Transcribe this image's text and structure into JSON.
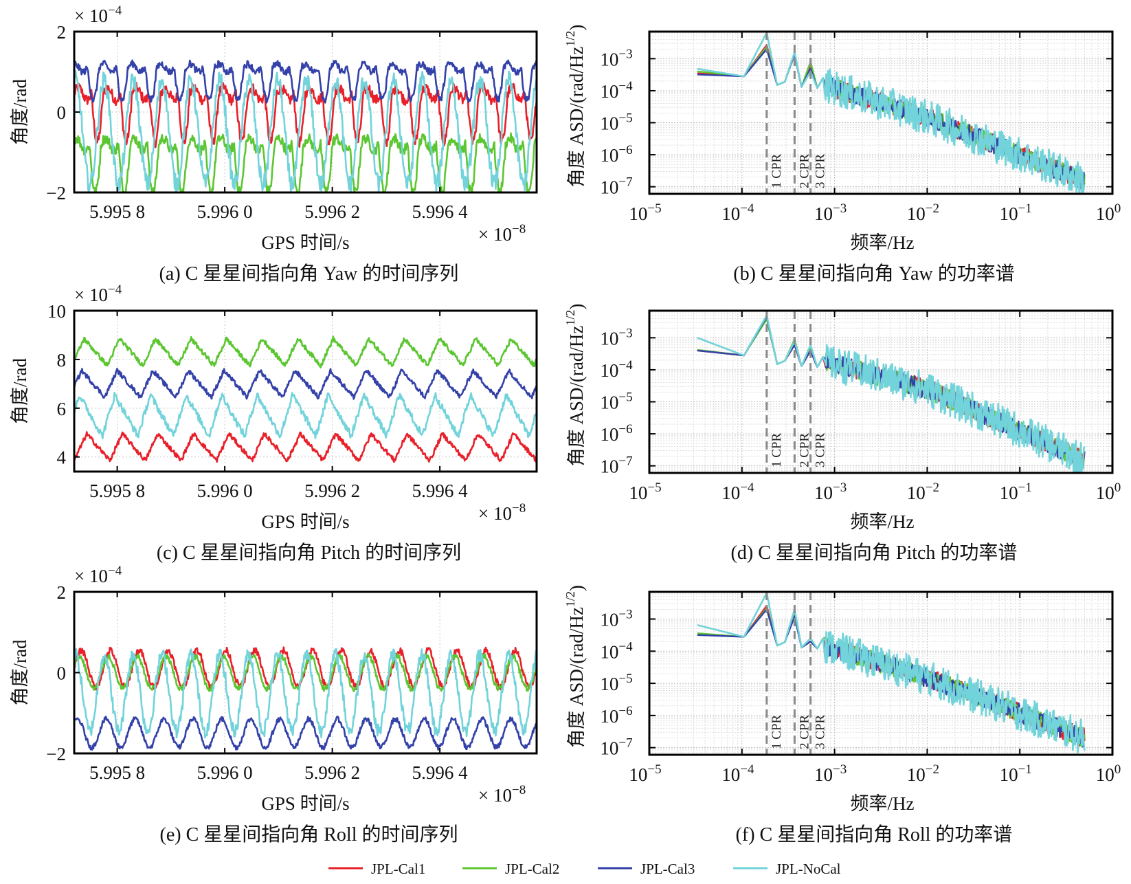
{
  "legend": [
    {
      "name": "JPL-Cal1",
      "color": "#e8202a"
    },
    {
      "name": "JPL-Cal2",
      "color": "#5cc631"
    },
    {
      "name": "JPL-Cal3",
      "color": "#3341a8"
    },
    {
      "name": "JPL-NoCal",
      "color": "#72d3da"
    }
  ],
  "chart_data": [
    {
      "id": "a",
      "type": "line",
      "caption": "(a) C 星星间指向角 Yaw 的时间序列",
      "xlabel": "GPS 时间/s",
      "ylabel": "角度/rad",
      "x_multiplier": "× 10⁻⁸",
      "x_multiplier_base": "× 10",
      "x_multiplier_exp": "−8",
      "y_multiplier_base": "× 10",
      "y_multiplier_exp": "−4",
      "xlim": [
        5.99572,
        5.99658
      ],
      "ylim": [
        -2,
        2
      ],
      "xticks": [
        5.9958,
        5.996,
        5.9962,
        5.9964
      ],
      "xtick_labels": [
        "5.995 8",
        "5.996 0",
        "5.996 2",
        "5.996 4"
      ],
      "yticks": [
        -2,
        0,
        2
      ],
      "ytick_labels": [
        "−2",
        "0",
        "2"
      ],
      "grid": true,
      "periods": 16,
      "series": [
        {
          "name": "JPL-Cal1",
          "mean": 0.0,
          "amp": 0.75,
          "shape": "dip"
        },
        {
          "name": "JPL-Cal2",
          "mean": -1.25,
          "amp": 0.75,
          "shape": "dip"
        },
        {
          "name": "JPL-Cal3",
          "mean": 0.8,
          "amp": 0.5,
          "shape": "dip"
        },
        {
          "name": "JPL-NoCal",
          "mean": -0.5,
          "amp": 1.3,
          "shape": "sine"
        }
      ]
    },
    {
      "id": "b",
      "type": "line",
      "scale": "loglog",
      "caption": "(b) C 星星间指向角 Yaw 的功率谱",
      "xlabel": "频率/Hz",
      "ylabel": "角度 ASD/(rad/Hz^1/2)",
      "xlim": [
        1e-05,
        1
      ],
      "ylim": [
        6e-08,
        0.007
      ],
      "xtick_exps": [
        -5,
        -4,
        -3,
        -2,
        -1,
        0
      ],
      "ytick_exps": [
        -7,
        -6,
        -5,
        -4,
        -3
      ],
      "cpr_markers": [
        {
          "label": "1 CPR",
          "freq": 0.000185
        },
        {
          "label": "2 CPR",
          "freq": 0.00037
        },
        {
          "label": "3 CPR",
          "freq": 0.00055
        }
      ],
      "grid": true,
      "series": [
        {
          "name": "JPL-Cal1",
          "low": 0.00035,
          "p1": 0.0027,
          "p2": 0.0014,
          "p3": 0.0007
        },
        {
          "name": "JPL-Cal2",
          "low": 0.0004,
          "p1": 0.0024,
          "p2": 0.0014,
          "p3": 0.0008
        },
        {
          "name": "JPL-Cal3",
          "low": 0.00032,
          "p1": 0.002,
          "p2": 0.0014,
          "p3": 0.0005
        },
        {
          "name": "JPL-NoCal",
          "low": 0.00048,
          "p1": 0.0065,
          "p2": 0.0016,
          "p3": 0.0004
        }
      ],
      "high_freq_trend": {
        "at_1e-3": 0.00012,
        "at_1e-2": 1.5e-05,
        "at_0.5": 1.5e-07
      }
    },
    {
      "id": "c",
      "type": "line",
      "caption": "(c) C 星星间指向角 Pitch 的时间序列",
      "xlabel": "GPS 时间/s",
      "ylabel": "角度/rad",
      "x_multiplier_base": "× 10",
      "x_multiplier_exp": "−8",
      "y_multiplier_base": "× 10",
      "y_multiplier_exp": "−4",
      "xlim": [
        5.99572,
        5.99658
      ],
      "ylim": [
        3.4,
        10
      ],
      "xticks": [
        5.9958,
        5.996,
        5.9962,
        5.9964
      ],
      "xtick_labels": [
        "5.995 8",
        "5.996 0",
        "5.996 2",
        "5.996 4"
      ],
      "yticks": [
        4,
        6,
        8,
        10
      ],
      "ytick_labels": [
        "4",
        "6",
        "8",
        "10"
      ],
      "grid": true,
      "periods": 13,
      "series": [
        {
          "name": "JPL-Cal1",
          "mean": 4.4,
          "amp": 0.55,
          "shape": "tri"
        },
        {
          "name": "JPL-Cal2",
          "mean": 8.3,
          "amp": 0.55,
          "shape": "tri"
        },
        {
          "name": "JPL-Cal3",
          "mean": 7.0,
          "amp": 0.55,
          "shape": "tri"
        },
        {
          "name": "JPL-NoCal",
          "mean": 5.7,
          "amp": 0.85,
          "shape": "tri"
        }
      ]
    },
    {
      "id": "d",
      "type": "line",
      "scale": "loglog",
      "caption": "(d) C 星星间指向角 Pitch 的功率谱",
      "xlabel": "频率/Hz",
      "ylabel": "角度 ASD/(rad/Hz^1/2)",
      "xlim": [
        1e-05,
        1
      ],
      "ylim": [
        6e-08,
        0.007
      ],
      "xtick_exps": [
        -5,
        -4,
        -3,
        -2,
        -1,
        0
      ],
      "ytick_exps": [
        -7,
        -6,
        -5,
        -4,
        -3
      ],
      "cpr_markers": [
        {
          "label": "1 CPR",
          "freq": 0.000185
        },
        {
          "label": "2 CPR",
          "freq": 0.00037
        },
        {
          "label": "3 CPR",
          "freq": 0.00055
        }
      ],
      "grid": true,
      "series": [
        {
          "name": "JPL-Cal1",
          "low": 0.0004,
          "p1": 0.0045,
          "p2": 0.0006,
          "p3": 0.0004
        },
        {
          "name": "JPL-Cal2",
          "low": 0.00042,
          "p1": 0.0038,
          "p2": 0.0009,
          "p3": 0.00045
        },
        {
          "name": "JPL-Cal3",
          "low": 0.0004,
          "p1": 0.0045,
          "p2": 0.0006,
          "p3": 0.0004
        },
        {
          "name": "JPL-NoCal",
          "low": 0.001,
          "p1": 0.005,
          "p2": 0.0008,
          "p3": 0.0006
        }
      ],
      "high_freq_trend": {
        "at_1e-3": 0.00015,
        "at_1e-2": 2.5e-05,
        "at_0.5": 1.5e-07
      }
    },
    {
      "id": "e",
      "type": "line",
      "caption": "(e) C 星星间指向角 Roll 的时间序列",
      "xlabel": "GPS 时间/s",
      "ylabel": "角度/rad",
      "x_multiplier_base": "× 10",
      "x_multiplier_exp": "−8",
      "y_multiplier_base": "× 10",
      "y_multiplier_exp": "−4",
      "xlim": [
        5.99572,
        5.99658
      ],
      "ylim": [
        -2,
        2
      ],
      "xticks": [
        5.9958,
        5.996,
        5.9962,
        5.9964
      ],
      "xtick_labels": [
        "5.995 8",
        "5.996 0",
        "5.996 2",
        "5.996 4"
      ],
      "yticks": [
        -2,
        0,
        2
      ],
      "ytick_labels": [
        "−2",
        "0",
        "2"
      ],
      "grid": true,
      "periods": 16,
      "series": [
        {
          "name": "JPL-Cal1",
          "mean": 0.1,
          "amp": 0.45,
          "shape": "sine"
        },
        {
          "name": "JPL-Cal2",
          "mean": 0.0,
          "amp": 0.4,
          "shape": "sine"
        },
        {
          "name": "JPL-Cal3",
          "mean": -1.5,
          "amp": 0.35,
          "shape": "sine"
        },
        {
          "name": "JPL-NoCal",
          "mean": -0.5,
          "amp": 0.95,
          "shape": "sine"
        }
      ]
    },
    {
      "id": "f",
      "type": "line",
      "scale": "loglog",
      "caption": "(f) C 星星间指向角 Roll 的功率谱",
      "xlabel": "频率/Hz",
      "ylabel": "角度 ASD/(rad/Hz^1/2)",
      "xlim": [
        1e-05,
        1
      ],
      "ylim": [
        6e-08,
        0.007
      ],
      "xtick_exps": [
        -5,
        -4,
        -3,
        -2,
        -1,
        0
      ],
      "ytick_exps": [
        -7,
        -6,
        -5,
        -4,
        -3
      ],
      "cpr_markers": [
        {
          "label": "1 CPR",
          "freq": 0.000185
        },
        {
          "label": "2 CPR",
          "freq": 0.00037
        },
        {
          "label": "3 CPR",
          "freq": 0.00055
        }
      ],
      "grid": true,
      "series": [
        {
          "name": "JPL-Cal1",
          "low": 0.00035,
          "p1": 0.0026,
          "p2": 0.0016,
          "p3": 0.0002
        },
        {
          "name": "JPL-Cal2",
          "low": 0.00036,
          "p1": 0.0022,
          "p2": 0.0018,
          "p3": 0.0002
        },
        {
          "name": "JPL-Cal3",
          "low": 0.00032,
          "p1": 0.002,
          "p2": 0.0012,
          "p3": 0.0002
        },
        {
          "name": "JPL-NoCal",
          "low": 0.00065,
          "p1": 0.0065,
          "p2": 0.002,
          "p3": 0.00025
        }
      ],
      "high_freq_trend": {
        "at_1e-3": 0.00012,
        "at_1e-2": 1.5e-05,
        "at_0.5": 2e-07
      }
    }
  ]
}
